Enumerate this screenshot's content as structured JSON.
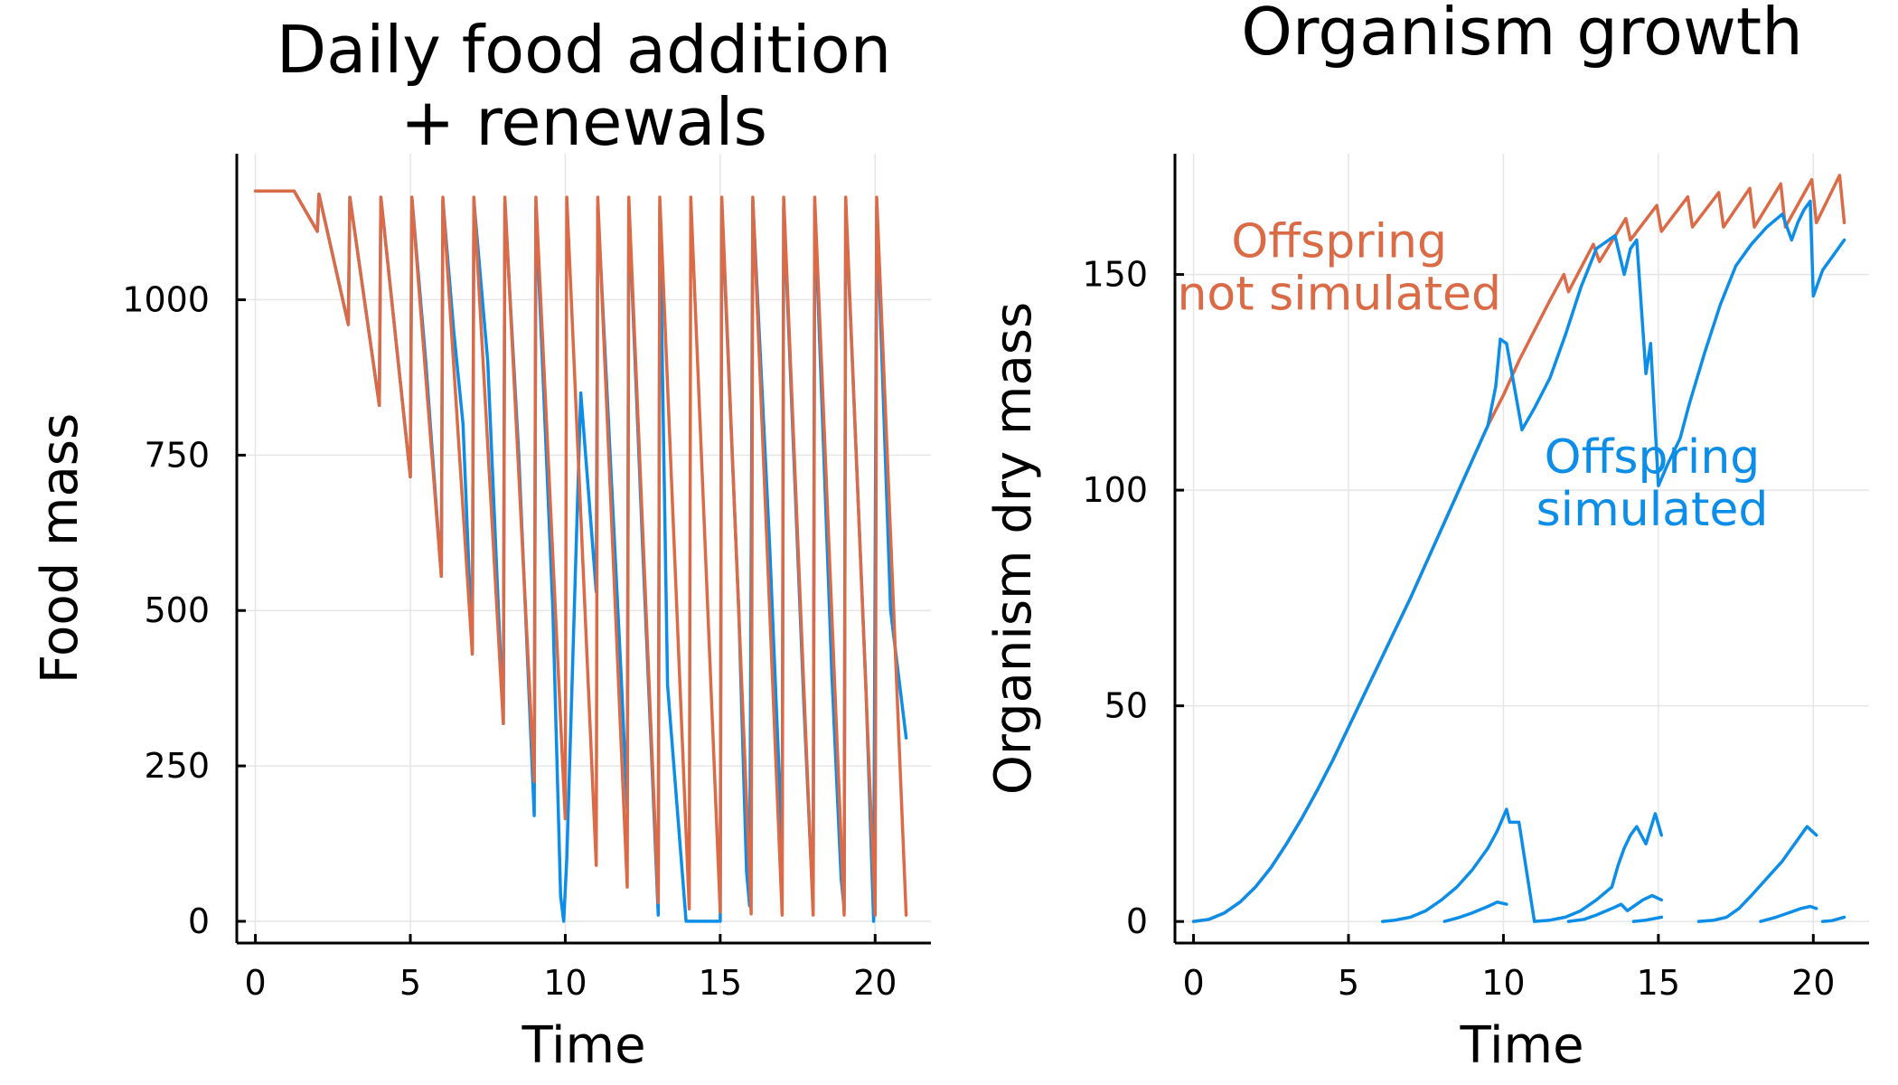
{
  "colors": {
    "simulated": "#0C8EE8",
    "not_simulated": "#DB6B47"
  },
  "chart_data": [
    {
      "type": "line",
      "title": [
        "Daily food addition",
        "+ renewals"
      ],
      "xlabel": "Time",
      "ylabel": "Food mass",
      "xlim": [
        -0.6,
        21.8
      ],
      "ylim": [
        -35,
        1235
      ],
      "xticks": [
        0,
        5,
        10,
        15,
        20
      ],
      "yticks": [
        0,
        250,
        500,
        750,
        1000
      ],
      "grid": true,
      "legend": "none",
      "series": [
        {
          "color_key": "simulated",
          "x": [
            0,
            1.25,
            2,
            2.05,
            3,
            3.05,
            4,
            4.05,
            5,
            5.05,
            5.5,
            6,
            6.05,
            6.4,
            6.7,
            7,
            7.05,
            7.5,
            8,
            8.05,
            8.5,
            9,
            9.05,
            9.6,
            9.85,
            9.95,
            10.05,
            10.5,
            11,
            11.05,
            11.8,
            12,
            12.05,
            12.5,
            12.8,
            13,
            13.05,
            13.3,
            13.9,
            14.2,
            15,
            15.05,
            15.6,
            15.85,
            15.95,
            16.05,
            16.6,
            17,
            17.05,
            17.7,
            18,
            18.05,
            18.6,
            18.9,
            19,
            19.05,
            19.7,
            19.95,
            20.05,
            20.5,
            21
          ],
          "y": [
            1175,
            1175,
            1110,
            1170,
            960,
            1165,
            830,
            1165,
            715,
            1165,
            900,
            555,
            1160,
            950,
            800,
            430,
            1160,
            900,
            318,
            1155,
            750,
            170,
            1150,
            500,
            40,
            0,
            100,
            850,
            530,
            1150,
            400,
            180,
            1150,
            600,
            250,
            10,
            1150,
            380,
            0,
            0,
            0,
            1150,
            500,
            80,
            25,
            1160,
            600,
            120,
            1150,
            350,
            20,
            1150,
            400,
            70,
            20,
            1155,
            380,
            0,
            1150,
            500,
            295
          ]
        },
        {
          "color_key": "not_simulated",
          "x": [
            0,
            1.25,
            2,
            2.05,
            3,
            3.05,
            4,
            4.05,
            5,
            5.05,
            6,
            6.05,
            7,
            7.05,
            8,
            8.05,
            9,
            9.05,
            10,
            10.05,
            11,
            11.05,
            12,
            12.05,
            13,
            13.05,
            14,
            14.05,
            15,
            15.05,
            16,
            16.05,
            17,
            17.05,
            18,
            18.05,
            19,
            19.05,
            20,
            20.05,
            21
          ],
          "y": [
            1175,
            1175,
            1110,
            1170,
            960,
            1165,
            830,
            1165,
            715,
            1165,
            555,
            1165,
            430,
            1165,
            318,
            1165,
            225,
            1165,
            165,
            1165,
            90,
            1165,
            55,
            1165,
            30,
            1165,
            20,
            1165,
            15,
            1165,
            12,
            1165,
            10,
            1165,
            10,
            1165,
            10,
            1165,
            10,
            1165,
            10
          ]
        }
      ]
    },
    {
      "type": "line",
      "title": [
        "Organism growth"
      ],
      "xlabel": "Time",
      "ylabel": "Organism dry mass",
      "xlim": [
        -0.6,
        21.8
      ],
      "ylim": [
        -5,
        178
      ],
      "xticks": [
        0,
        5,
        10,
        15,
        20
      ],
      "yticks": [
        0,
        50,
        100,
        150
      ],
      "grid": true,
      "legend": "none",
      "annotations": [
        {
          "lines": [
            "Offspring",
            "not simulated"
          ],
          "color_key": "not_simulated",
          "x": 4.7,
          "y": 154
        },
        {
          "lines": [
            "Offspring",
            " simulated"
          ],
          "color_key": "simulated",
          "x": 14.8,
          "y": 104
        }
      ],
      "series": [
        {
          "color_key": "not_simulated",
          "x": [
            0,
            0.5,
            1,
            1.5,
            2,
            2.5,
            3,
            3.5,
            4,
            4.5,
            5,
            5.5,
            6,
            6.5,
            7,
            7.5,
            8,
            8.5,
            9,
            9.5,
            10,
            10.5,
            11,
            11.5,
            11.95,
            12.1,
            12.9,
            13.1,
            13.95,
            14.1,
            14.95,
            15.1,
            15.95,
            16.1,
            16.95,
            17.1,
            17.95,
            18.1,
            18.95,
            19.1,
            19.95,
            20.1,
            20.85,
            21
          ],
          "y": [
            0,
            0.5,
            2,
            4.5,
            8,
            12.5,
            18,
            24,
            30.5,
            37.5,
            45,
            52.5,
            60,
            67.5,
            75,
            83,
            91,
            99,
            107,
            115,
            122,
            130,
            137,
            144,
            150,
            146,
            157,
            153,
            163,
            158,
            166,
            160,
            168,
            161,
            169,
            161,
            170,
            161,
            171,
            161,
            172,
            162,
            173,
            162
          ]
        },
        {
          "color_key": "simulated",
          "x": [
            0,
            0.5,
            1,
            1.5,
            2,
            2.5,
            3,
            3.5,
            4,
            4.5,
            5,
            5.5,
            6,
            6.5,
            7,
            7.5,
            8,
            8.5,
            9,
            9.5,
            9.75,
            9.9,
            10.1,
            10.6,
            11,
            11.5,
            12,
            12.5,
            13,
            13.6,
            13.9,
            14.1,
            14.3,
            14.6,
            14.75,
            15,
            15.3,
            15.7,
            16,
            16.5,
            17,
            17.5,
            18,
            18.5,
            19,
            19.3,
            19.5,
            19.7,
            19.9,
            20,
            20.3,
            20.6,
            21
          ],
          "y": [
            0,
            0.5,
            2,
            4.5,
            8,
            12.5,
            18,
            24,
            30.5,
            37.5,
            45,
            52.5,
            60,
            67.5,
            75,
            83,
            91,
            99,
            107,
            115,
            124,
            135,
            134,
            114,
            119,
            126,
            136,
            147,
            156,
            159,
            150,
            156,
            158,
            127,
            134,
            101,
            106,
            112,
            120,
            132,
            143,
            152,
            157,
            161,
            164,
            158,
            162,
            165,
            167,
            145,
            151,
            154,
            158
          ]
        },
        {
          "color_key": "simulated",
          "x": [
            6.1,
            6.5,
            7,
            7.5,
            8,
            8.5,
            9,
            9.5,
            9.8,
            10.1,
            10.2,
            10.5,
            11,
            11.5,
            12,
            12.5,
            13,
            13.5,
            13.7,
            13.9,
            14.1,
            14.3,
            14.6,
            14.9,
            15.1
          ],
          "y": [
            0,
            0.3,
            1,
            2.5,
            5,
            8,
            12,
            17,
            21,
            26,
            23,
            23,
            0,
            0.3,
            1,
            2.5,
            5,
            8,
            13,
            17,
            20,
            22,
            18,
            25,
            20
          ]
        },
        {
          "color_key": "simulated",
          "x": [
            8.1,
            8.6,
            9,
            9.5,
            9.8,
            10.1
          ],
          "y": [
            0,
            1,
            2,
            3.5,
            4.5,
            4
          ]
        },
        {
          "color_key": "simulated",
          "x": [
            12.1,
            12.6,
            13,
            13.5,
            13.8,
            14,
            14.2,
            14.5,
            14.8,
            15.1
          ],
          "y": [
            0,
            0.5,
            1.5,
            3,
            4,
            2.5,
            3.5,
            5,
            6,
            5
          ]
        },
        {
          "color_key": "simulated",
          "x": [
            14.2,
            14.6,
            15.1
          ],
          "y": [
            0,
            0.3,
            1
          ]
        },
        {
          "color_key": "simulated",
          "x": [
            16.3,
            16.8,
            17.2,
            17.6,
            18,
            18.5,
            19,
            19.5,
            19.8,
            20.1
          ],
          "y": [
            0,
            0.3,
            1,
            3,
            6,
            10,
            14,
            19,
            22,
            20
          ]
        },
        {
          "color_key": "simulated",
          "x": [
            18.3,
            18.8,
            19.2,
            19.6,
            19.9,
            20.1
          ],
          "y": [
            0,
            1,
            2,
            3,
            3.5,
            3
          ]
        },
        {
          "color_key": "simulated",
          "x": [
            20.3,
            20.6,
            21
          ],
          "y": [
            0,
            0.2,
            1
          ]
        }
      ]
    }
  ]
}
